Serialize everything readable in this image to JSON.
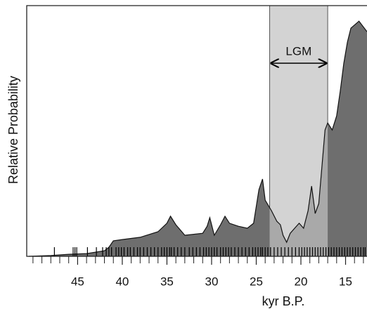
{
  "chart_data": {
    "type": "area",
    "xlabel": "kyr B.P.",
    "ylabel": "Relative Probability",
    "x": [
      50.5,
      48,
      46,
      44,
      42,
      41.5,
      41,
      40,
      38,
      36,
      35,
      34.6,
      34,
      33,
      31,
      30.5,
      30.2,
      29.7,
      29,
      28.5,
      28,
      27,
      26,
      25.3,
      24.7,
      24.3,
      24,
      23.3,
      22.7,
      22.3,
      22,
      21.6,
      21.2,
      20.7,
      20.2,
      19.7,
      19.2,
      18.8,
      18.4,
      18,
      17.6,
      17.3,
      17,
      16.5,
      16,
      15.6,
      15.2,
      14.8,
      14.4,
      13.5,
      12.6
    ],
    "values": [
      0,
      0.003,
      0.008,
      0.011,
      0.022,
      0.036,
      0.062,
      0.067,
      0.076,
      0.098,
      0.132,
      0.16,
      0.126,
      0.084,
      0.092,
      0.12,
      0.154,
      0.084,
      0.126,
      0.16,
      0.132,
      0.12,
      0.112,
      0.132,
      0.266,
      0.308,
      0.224,
      0.182,
      0.14,
      0.126,
      0.084,
      0.056,
      0.092,
      0.112,
      0.132,
      0.112,
      0.182,
      0.28,
      0.171,
      0.21,
      0.378,
      0.504,
      0.532,
      0.504,
      0.56,
      0.658,
      0.77,
      0.854,
      0.91,
      0.938,
      0.896
    ],
    "color": "#6e6e6e",
    "xlim": [
      50.7,
      12.6
    ],
    "ylim": [
      0,
      1
    ],
    "xticks": [
      45,
      40,
      35,
      30,
      25,
      20,
      15
    ],
    "xminorticks": [
      50,
      49,
      48,
      47,
      46,
      44,
      43,
      42,
      41,
      39,
      38,
      37,
      36,
      34,
      33,
      32,
      31,
      29,
      28,
      27,
      26,
      24,
      23,
      22,
      21,
      19,
      18,
      17,
      16,
      14,
      13
    ],
    "shaded_region": {
      "label": "LGM",
      "start": 23.5,
      "end": 17
    },
    "rug": [
      47.6,
      45.5,
      45.3,
      45.1,
      43.9,
      42.9,
      42.2,
      41.8,
      41.5,
      41.2,
      40.7,
      40.4,
      40.1,
      39.8,
      39.4,
      39.1,
      38.7,
      38.3,
      38.0,
      37.6,
      37.2,
      36.8,
      36.4,
      36.0,
      35.6,
      35.3,
      35.0,
      34.7,
      34.5,
      34.2,
      33.8,
      33.4,
      33.0,
      32.5,
      32.1,
      31.7,
      31.3,
      30.9,
      30.6,
      30.3,
      30.0,
      29.7,
      29.4,
      29.0,
      28.7,
      28.4,
      28.1,
      27.8,
      27.4,
      27.0,
      26.6,
      26.2,
      25.8,
      25.4,
      25.1,
      24.8,
      24.5,
      24.3,
      24.0,
      23.7,
      23.4,
      23.0,
      22.6,
      22.2,
      21.8,
      21.4,
      21.0,
      20.6,
      20.2,
      19.9,
      19.6,
      19.3,
      19.0,
      18.7,
      18.4,
      18.1,
      17.8,
      17.5,
      17.2,
      16.9,
      16.6,
      16.3,
      16.0,
      15.7,
      15.4,
      15.1,
      14.8,
      14.5,
      14.2,
      13.9,
      13.6,
      13.3,
      13.0,
      12.8
    ]
  }
}
